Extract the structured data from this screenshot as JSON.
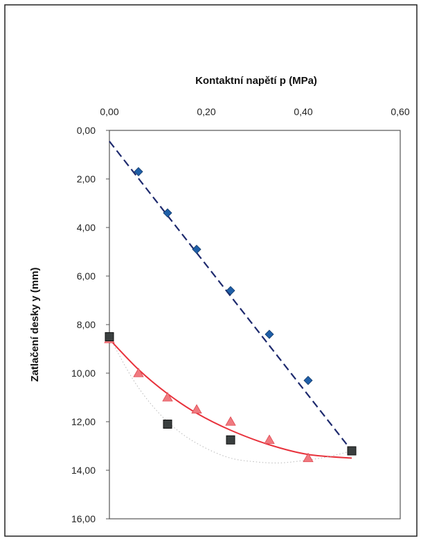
{
  "chart_data": {
    "type": "scatter",
    "title": "",
    "xlabel": "Kontaktní napětí p (MPa)",
    "ylabel": "Zatlačení desky y (mm)",
    "xlim": [
      0,
      0.6
    ],
    "ylim": [
      0,
      16
    ],
    "y_inverted": true,
    "x_axis_position": "top",
    "x_ticks": [
      "0,00",
      "0,20",
      "0,40",
      "0,60"
    ],
    "x_tick_values": [
      0,
      0.2,
      0.4,
      0.6
    ],
    "y_ticks": [
      "0,00",
      "2,00",
      "4,00",
      "6,00",
      "8,00",
      "10,00",
      "12,00",
      "14,00",
      "16,00"
    ],
    "y_tick_values": [
      0,
      2,
      4,
      6,
      8,
      10,
      12,
      14,
      16
    ],
    "grid": false,
    "legend": "none",
    "series": [
      {
        "marker": "diamond",
        "color": "#1f5fa8",
        "x": [
          0.06,
          0.12,
          0.18,
          0.25,
          0.33,
          0.41
        ],
        "y": [
          1.7,
          3.4,
          4.9,
          6.6,
          8.4,
          10.3
        ]
      },
      {
        "marker": "triangle",
        "color": "#f07a80",
        "x": [
          0.0,
          0.06,
          0.12,
          0.18,
          0.25,
          0.33,
          0.41
        ],
        "y": [
          8.6,
          10.0,
          11.0,
          11.5,
          12.0,
          12.75,
          13.5
        ]
      },
      {
        "marker": "square",
        "color": "#3a3f3f",
        "x": [
          0.0,
          0.12,
          0.25,
          0.5
        ],
        "y": [
          8.5,
          12.1,
          12.75,
          13.2
        ]
      }
    ],
    "trendlines": [
      {
        "style": "dashed",
        "color": "#1e2a6e",
        "kind": "linear",
        "x": [
          0.0,
          0.5
        ],
        "y": [
          0.45,
          13.2
        ]
      },
      {
        "style": "solid",
        "color": "#e8323c",
        "kind": "polynomial",
        "x": [
          0.0,
          0.06,
          0.12,
          0.18,
          0.25,
          0.33,
          0.41,
          0.5
        ],
        "y": [
          8.6,
          9.85,
          10.85,
          11.65,
          12.35,
          12.95,
          13.35,
          13.5
        ]
      },
      {
        "style": "dotted",
        "color": "#b8b8b8",
        "kind": "polynomial",
        "x": [
          0.0,
          0.05,
          0.1,
          0.15,
          0.2,
          0.25,
          0.3,
          0.35,
          0.4,
          0.45,
          0.5
        ],
        "y": [
          8.5,
          10.3,
          11.6,
          12.5,
          13.1,
          13.5,
          13.65,
          13.7,
          13.6,
          13.45,
          13.2
        ]
      }
    ]
  }
}
